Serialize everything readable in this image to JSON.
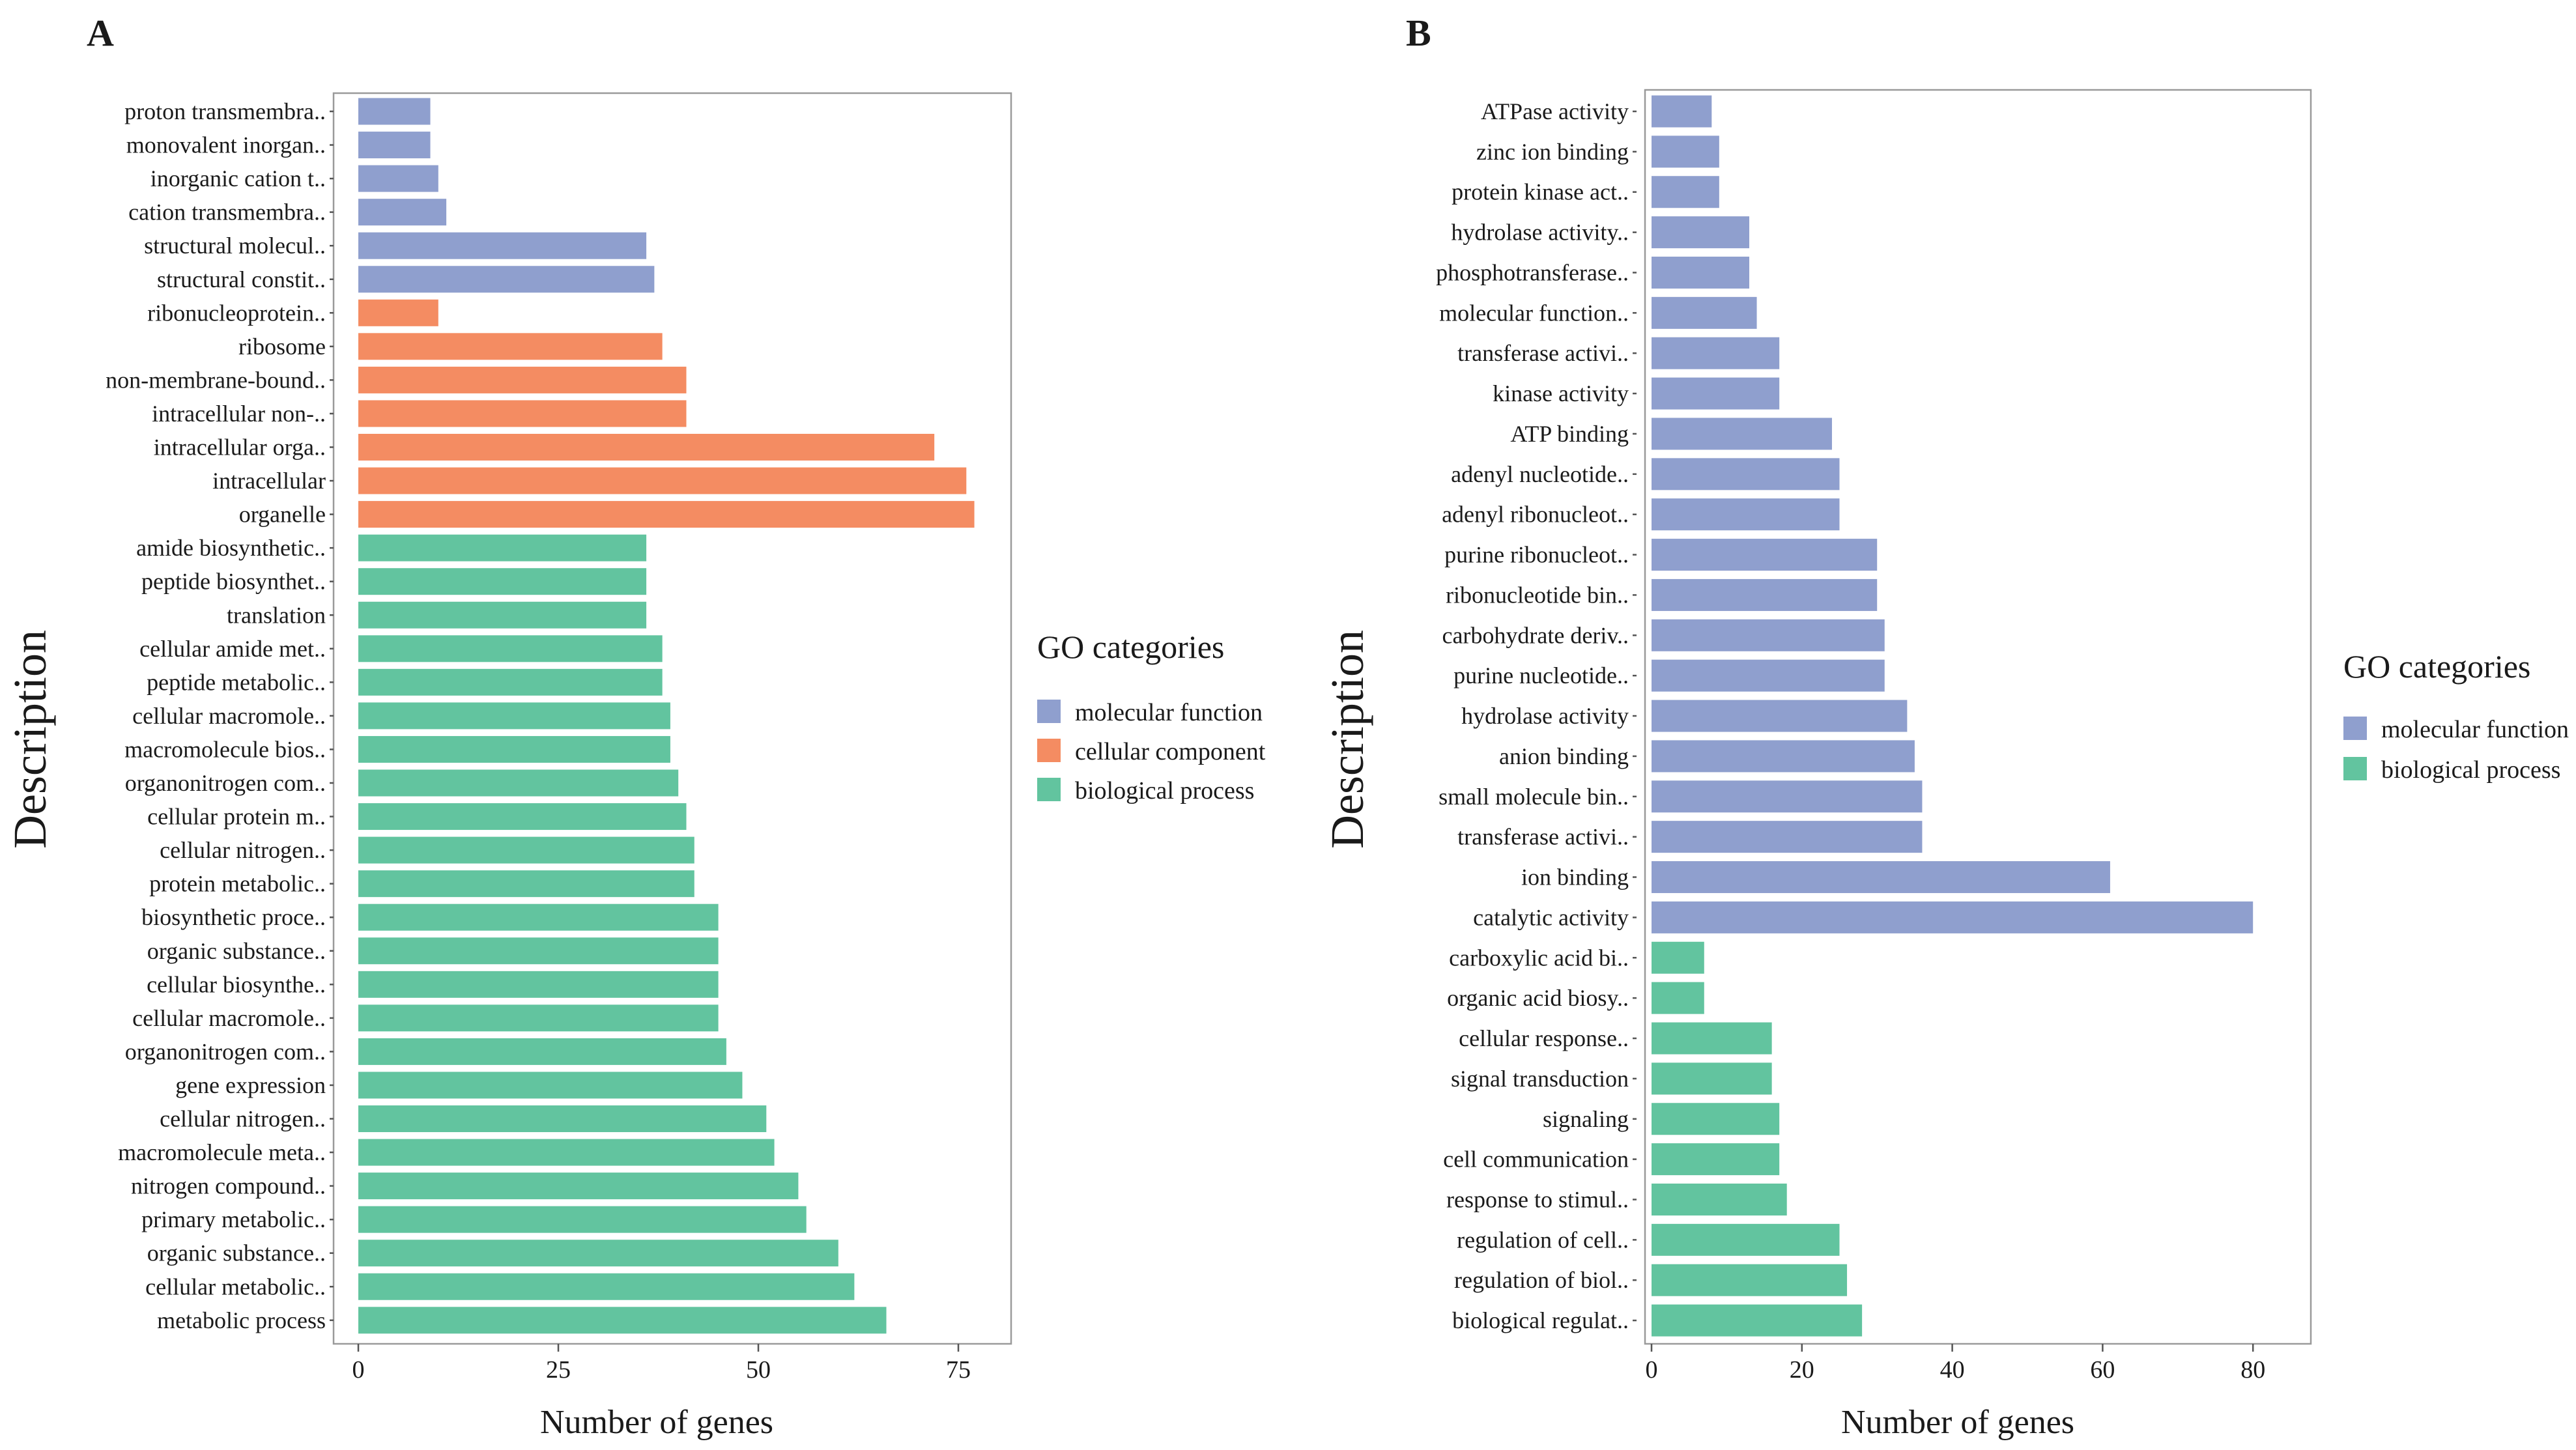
{
  "colors": {
    "molecular_function": "#8f9fce",
    "cellular_component": "#f48c62",
    "biological_process": "#62c49f"
  },
  "chart_data": [
    {
      "type": "bar",
      "orientation": "horizontal",
      "panel": "A",
      "xlabel": "Number of genes",
      "ylabel": "Description",
      "xlim": [
        0,
        80
      ],
      "xticks": [
        0,
        25,
        50,
        75
      ],
      "legend_title": "GO categories",
      "legend_position": "right",
      "legend": [
        {
          "name": "molecular function",
          "category": "molecular_function"
        },
        {
          "name": "cellular component",
          "category": "cellular_component"
        },
        {
          "name": "biological process",
          "category": "biological_process"
        }
      ],
      "bars": [
        {
          "label": "proton transmembra..",
          "value": 9,
          "category": "molecular_function"
        },
        {
          "label": "monovalent inorgan..",
          "value": 9,
          "category": "molecular_function"
        },
        {
          "label": "inorganic cation t..",
          "value": 10,
          "category": "molecular_function"
        },
        {
          "label": "cation transmembra..",
          "value": 11,
          "category": "molecular_function"
        },
        {
          "label": "structural molecul..",
          "value": 36,
          "category": "molecular_function"
        },
        {
          "label": "structural constit..",
          "value": 37,
          "category": "molecular_function"
        },
        {
          "label": "ribonucleoprotein..",
          "value": 10,
          "category": "cellular_component"
        },
        {
          "label": "ribosome",
          "value": 38,
          "category": "cellular_component"
        },
        {
          "label": "non-membrane-bound..",
          "value": 41,
          "category": "cellular_component"
        },
        {
          "label": "intracellular non-..",
          "value": 41,
          "category": "cellular_component"
        },
        {
          "label": "intracellular orga..",
          "value": 72,
          "category": "cellular_component"
        },
        {
          "label": "intracellular",
          "value": 76,
          "category": "cellular_component"
        },
        {
          "label": "organelle",
          "value": 77,
          "category": "cellular_component"
        },
        {
          "label": "amide biosynthetic..",
          "value": 36,
          "category": "biological_process"
        },
        {
          "label": "peptide biosynthet..",
          "value": 36,
          "category": "biological_process"
        },
        {
          "label": "translation",
          "value": 36,
          "category": "biological_process"
        },
        {
          "label": "cellular amide met..",
          "value": 38,
          "category": "biological_process"
        },
        {
          "label": "peptide metabolic..",
          "value": 38,
          "category": "biological_process"
        },
        {
          "label": "cellular macromole..",
          "value": 39,
          "category": "biological_process"
        },
        {
          "label": "macromolecule bios..",
          "value": 39,
          "category": "biological_process"
        },
        {
          "label": "organonitrogen com..",
          "value": 40,
          "category": "biological_process"
        },
        {
          "label": "cellular protein m..",
          "value": 41,
          "category": "biological_process"
        },
        {
          "label": "cellular nitrogen..",
          "value": 42,
          "category": "biological_process"
        },
        {
          "label": "protein metabolic..",
          "value": 42,
          "category": "biological_process"
        },
        {
          "label": "biosynthetic proce..",
          "value": 45,
          "category": "biological_process"
        },
        {
          "label": "organic substance..",
          "value": 45,
          "category": "biological_process"
        },
        {
          "label": "cellular biosynthe..",
          "value": 45,
          "category": "biological_process"
        },
        {
          "label": "cellular macromole..",
          "value": 45,
          "category": "biological_process"
        },
        {
          "label": "organonitrogen com..",
          "value": 46,
          "category": "biological_process"
        },
        {
          "label": "gene expression",
          "value": 48,
          "category": "biological_process"
        },
        {
          "label": "cellular nitrogen..",
          "value": 51,
          "category": "biological_process"
        },
        {
          "label": "macromolecule meta..",
          "value": 52,
          "category": "biological_process"
        },
        {
          "label": "nitrogen compound..",
          "value": 55,
          "category": "biological_process"
        },
        {
          "label": "primary metabolic..",
          "value": 56,
          "category": "biological_process"
        },
        {
          "label": "organic substance..",
          "value": 60,
          "category": "biological_process"
        },
        {
          "label": "cellular metabolic..",
          "value": 62,
          "category": "biological_process"
        },
        {
          "label": "metabolic process",
          "value": 66,
          "category": "biological_process"
        }
      ]
    },
    {
      "type": "bar",
      "orientation": "horizontal",
      "panel": "B",
      "xlabel": "Number of genes",
      "ylabel": "Description",
      "xlim": [
        0,
        87
      ],
      "xticks": [
        0,
        20,
        40,
        60,
        80
      ],
      "legend_title": "GO categories",
      "legend_position": "right",
      "legend": [
        {
          "name": "molecular function",
          "category": "molecular_function"
        },
        {
          "name": "biological process",
          "category": "biological_process"
        }
      ],
      "bars": [
        {
          "label": "ATPase activity",
          "value": 8,
          "category": "molecular_function"
        },
        {
          "label": "zinc ion binding",
          "value": 9,
          "category": "molecular_function"
        },
        {
          "label": "protein kinase act..",
          "value": 9,
          "category": "molecular_function"
        },
        {
          "label": "hydrolase activity..",
          "value": 13,
          "category": "molecular_function"
        },
        {
          "label": "phosphotransferase..",
          "value": 13,
          "category": "molecular_function"
        },
        {
          "label": "molecular function..",
          "value": 14,
          "category": "molecular_function"
        },
        {
          "label": "transferase activi..",
          "value": 17,
          "category": "molecular_function"
        },
        {
          "label": "kinase activity",
          "value": 17,
          "category": "molecular_function"
        },
        {
          "label": "ATP binding",
          "value": 24,
          "category": "molecular_function"
        },
        {
          "label": "adenyl nucleotide..",
          "value": 25,
          "category": "molecular_function"
        },
        {
          "label": "adenyl ribonucleot..",
          "value": 25,
          "category": "molecular_function"
        },
        {
          "label": "purine ribonucleot..",
          "value": 30,
          "category": "molecular_function"
        },
        {
          "label": "ribonucleotide bin..",
          "value": 30,
          "category": "molecular_function"
        },
        {
          "label": "carbohydrate deriv..",
          "value": 31,
          "category": "molecular_function"
        },
        {
          "label": "purine nucleotide..",
          "value": 31,
          "category": "molecular_function"
        },
        {
          "label": "hydrolase activity",
          "value": 34,
          "category": "molecular_function"
        },
        {
          "label": "anion binding",
          "value": 35,
          "category": "molecular_function"
        },
        {
          "label": "small molecule bin..",
          "value": 36,
          "category": "molecular_function"
        },
        {
          "label": "transferase activi..",
          "value": 36,
          "category": "molecular_function"
        },
        {
          "label": "ion binding",
          "value": 61,
          "category": "molecular_function"
        },
        {
          "label": "catalytic activity",
          "value": 80,
          "category": "molecular_function"
        },
        {
          "label": "carboxylic acid bi..",
          "value": 7,
          "category": "biological_process"
        },
        {
          "label": "organic acid biosy..",
          "value": 7,
          "category": "biological_process"
        },
        {
          "label": "cellular response..",
          "value": 16,
          "category": "biological_process"
        },
        {
          "label": "signal transduction",
          "value": 16,
          "category": "biological_process"
        },
        {
          "label": "signaling",
          "value": 17,
          "category": "biological_process"
        },
        {
          "label": "cell communication",
          "value": 17,
          "category": "biological_process"
        },
        {
          "label": "response to stimul..",
          "value": 18,
          "category": "biological_process"
        },
        {
          "label": "regulation of cell..",
          "value": 25,
          "category": "biological_process"
        },
        {
          "label": "regulation of biol..",
          "value": 26,
          "category": "biological_process"
        },
        {
          "label": "biological regulat..",
          "value": 28,
          "category": "biological_process"
        }
      ]
    }
  ]
}
